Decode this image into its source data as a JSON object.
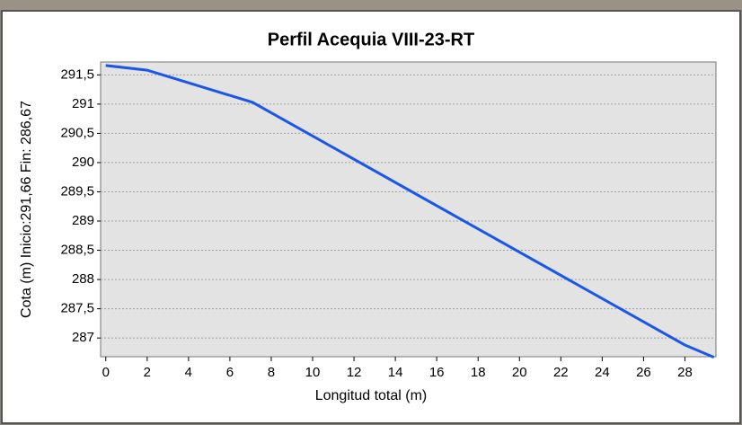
{
  "chart_data": {
    "type": "line",
    "title": "Perfil Acequia VIII-23-RT",
    "x_label": "Longitud total (m)",
    "y_label": "Cota (m) Inicio:291,66  Fin: 286,67",
    "x": [
      0,
      2,
      7.1,
      28,
      29.4
    ],
    "values": [
      291.66,
      291.58,
      291.03,
      286.88,
      286.67
    ],
    "color": "#1a56e8",
    "xlim": [
      -0.25,
      29.5
    ],
    "xticks": [
      0,
      2,
      4,
      6,
      8,
      10,
      12,
      14,
      16,
      18,
      20,
      22,
      24,
      26,
      28
    ],
    "ylim": [
      286.68,
      291.72
    ],
    "yticks": [
      {
        "value": 287,
        "label": "287"
      },
      {
        "value": 287.5,
        "label": "287,5"
      },
      {
        "value": 288,
        "label": "288"
      },
      {
        "value": 288.5,
        "label": "288,5"
      },
      {
        "value": 289,
        "label": "289"
      },
      {
        "value": 289.5,
        "label": "289,5"
      },
      {
        "value": 290,
        "label": "290"
      },
      {
        "value": 290.5,
        "label": "290,5"
      },
      {
        "value": 291,
        "label": "291"
      },
      {
        "value": 291.5,
        "label": "291,5"
      }
    ],
    "grid": true
  }
}
